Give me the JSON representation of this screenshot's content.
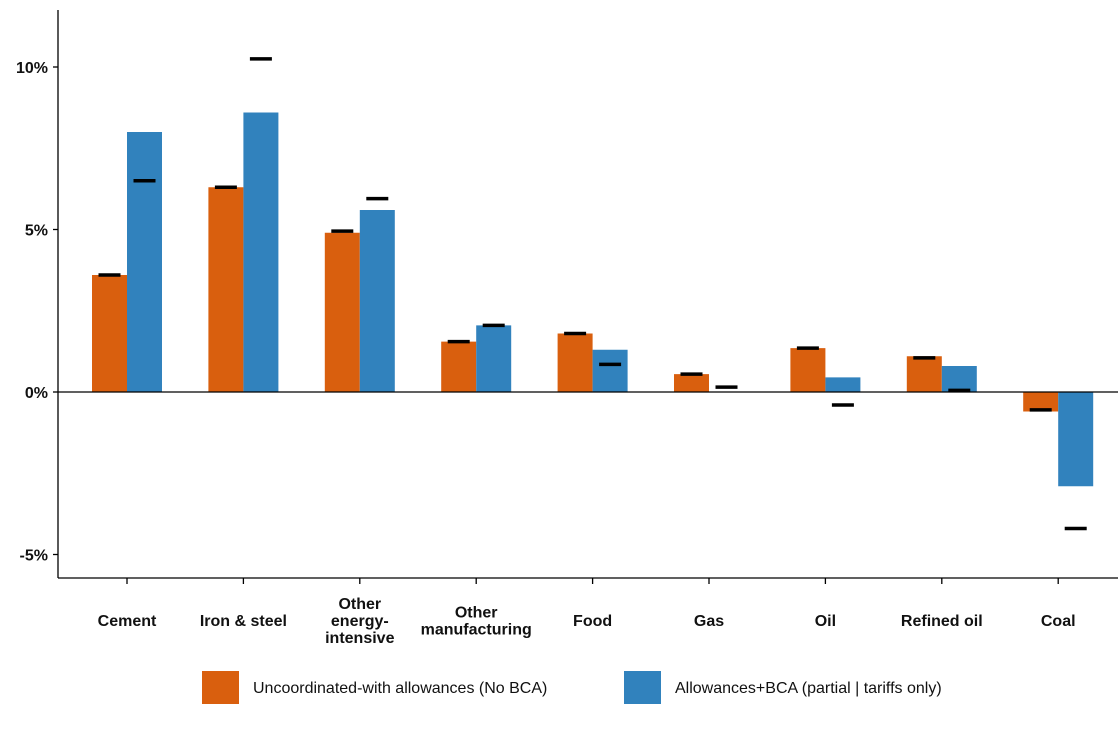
{
  "chart_data": {
    "type": "bar",
    "title": "",
    "xlabel": "",
    "ylabel": "",
    "ylim": [
      -5.7,
      11.8
    ],
    "y_ticks": [
      -5,
      0,
      5,
      10
    ],
    "y_tick_labels": [
      "-5%",
      "0%",
      "5%",
      "10%"
    ],
    "grid": false,
    "legend_position": "bottom",
    "categories": [
      [
        "Cement"
      ],
      [
        "Iron & steel"
      ],
      [
        "Other",
        "energy-",
        "intensive"
      ],
      [
        "Other",
        "manufacturing"
      ],
      [
        "Food"
      ],
      [
        "Gas"
      ],
      [
        "Oil"
      ],
      [
        "Refined oil"
      ],
      [
        "Coal"
      ]
    ],
    "series": [
      {
        "name": "Uncoordinated-with allowances (No BCA)",
        "color": "#d95f0e",
        "values": [
          3.6,
          6.3,
          4.9,
          1.55,
          1.8,
          0.55,
          1.35,
          1.1,
          -0.6
        ],
        "markers": [
          3.6,
          6.3,
          4.95,
          1.55,
          1.8,
          0.55,
          1.35,
          1.05,
          -0.55
        ]
      },
      {
        "name": "Allowances+BCA (partial | tariffs only)",
        "color": "#3182bd",
        "values": [
          8.0,
          8.6,
          5.6,
          2.05,
          1.3,
          0.0,
          0.45,
          0.8,
          -2.9
        ],
        "markers": [
          6.5,
          10.25,
          5.95,
          2.05,
          0.85,
          0.15,
          -0.4,
          0.05,
          -4.2
        ]
      }
    ]
  }
}
